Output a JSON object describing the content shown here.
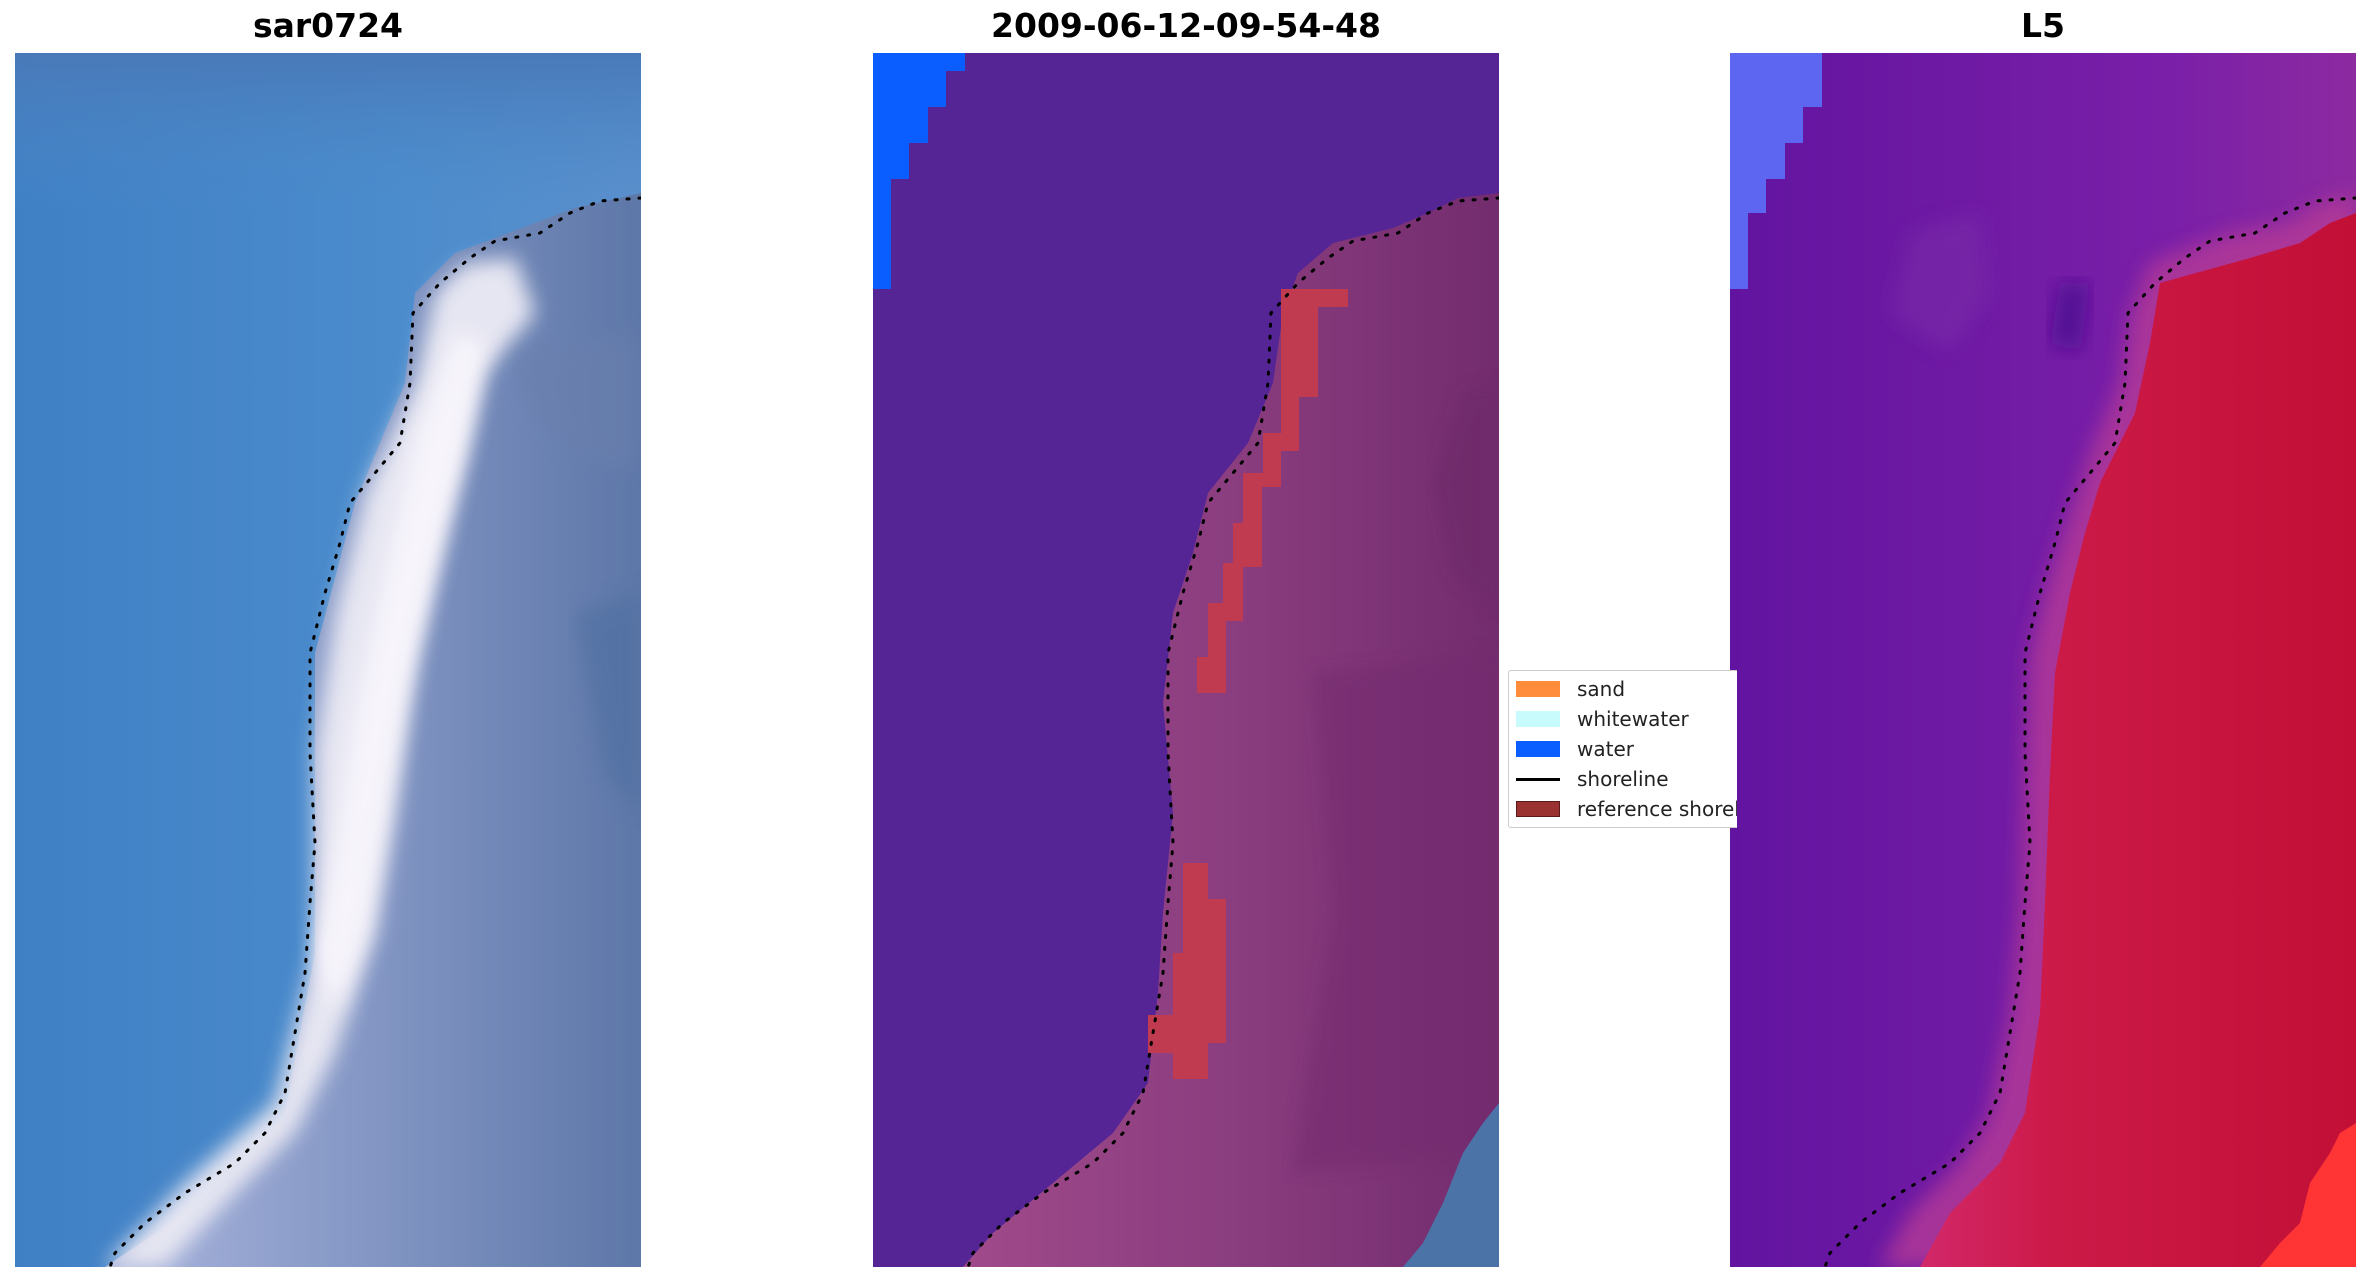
{
  "panels": [
    {
      "title": "sar0724"
    },
    {
      "title": "2009-06-12-09-54-48"
    },
    {
      "title": "L5"
    }
  ],
  "legend": {
    "items": [
      {
        "label": "sand",
        "color": "#ff8c3a",
        "kind": "patch"
      },
      {
        "label": "whitewater",
        "color": "#c8fbfb",
        "kind": "patch"
      },
      {
        "label": "water",
        "color": "#0a5dff",
        "kind": "patch"
      },
      {
        "label": "shoreline",
        "color": "#000000",
        "kind": "line"
      },
      {
        "label": "reference shoreline",
        "color": "#9b3232",
        "kind": "patch"
      }
    ]
  },
  "colors": {
    "rgb_water": "#4a86c6",
    "rgb_beach": "#e4e4ee",
    "rgb_land": "#7f92bd",
    "class_water": "#552596",
    "class_land": "#8c3e80",
    "class_sand": "#c03a50",
    "class_waterpatch": "#0a5dff",
    "index_water": "#6b1aa6",
    "index_land": "#c81942",
    "index_blue": "#5c66f0",
    "index_hot": "#ff3434",
    "shoreline": "#000000"
  }
}
